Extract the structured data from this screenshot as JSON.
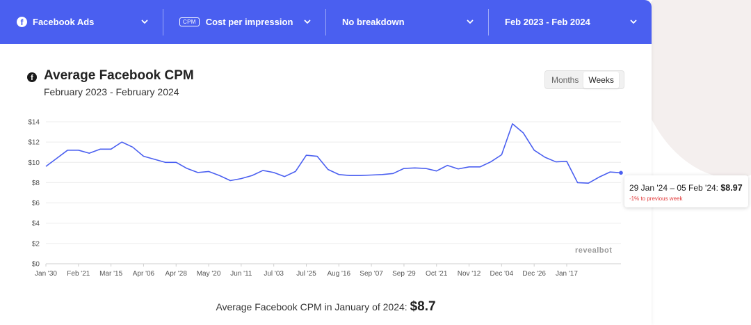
{
  "toolbar": {
    "platform": {
      "label": "Facebook Ads",
      "icon": "facebook-icon"
    },
    "metric": {
      "badge": "CPM",
      "label": "Cost per impression"
    },
    "breakdown": {
      "label": "No breakdown"
    },
    "date_range": {
      "label": "Feb 2023 - Feb 2024"
    },
    "accent_color": "#4a5ff0"
  },
  "chart_header": {
    "title": "Average Facebook CPM",
    "subtitle": "February 2023 - February 2024",
    "icon": "facebook-icon"
  },
  "granularity": {
    "options": [
      "Months",
      "Weeks"
    ],
    "selected": "Weeks"
  },
  "tooltip": {
    "label": "29 Jan '24 – 05 Feb '24:",
    "value": "$8.97",
    "change": "-1% to previous week"
  },
  "watermark": "revealbot",
  "footer": {
    "text": "Average Facebook CPM in January of 2024:",
    "value": "$8.7"
  },
  "chart_data": {
    "type": "line",
    "title": "Average Facebook CPM",
    "subtitle": "February 2023 - February 2024",
    "xlabel": "",
    "ylabel": "",
    "ylim": [
      0,
      14
    ],
    "y_ticks": [
      "$0",
      "$2",
      "$4",
      "$6",
      "$8",
      "$10",
      "$12",
      "$14"
    ],
    "x_tick_labels": [
      "Jan '30",
      "Feb '21",
      "Mar '15",
      "Apr '06",
      "Apr '28",
      "May '20",
      "Jun '11",
      "Jul '03",
      "Jul '25",
      "Aug '16",
      "Sep '07",
      "Sep '29",
      "Oct '21",
      "Nov '12",
      "Dec '04",
      "Dec '26",
      "Jan '17"
    ],
    "line_color": "#4a5ff0",
    "grid": true,
    "series": [
      {
        "values": [
          9.6,
          10.4,
          11.2,
          11.2,
          10.9,
          11.3,
          11.3,
          12.0,
          11.5,
          10.6,
          10.3,
          10.0,
          10.0,
          9.4,
          9.0,
          9.1,
          8.7,
          8.2,
          8.4,
          8.7,
          9.2,
          9.0,
          8.6,
          9.1,
          10.7,
          10.6,
          9.3,
          8.8,
          8.7,
          8.7,
          8.75,
          8.8,
          8.9,
          9.4,
          9.45,
          9.4,
          9.15,
          9.7,
          9.35,
          9.55,
          9.55,
          10.05,
          10.75,
          13.8,
          12.9,
          11.2,
          10.5,
          10.05,
          10.1,
          8.0,
          7.95,
          8.55,
          9.05,
          8.97
        ]
      }
    ]
  }
}
